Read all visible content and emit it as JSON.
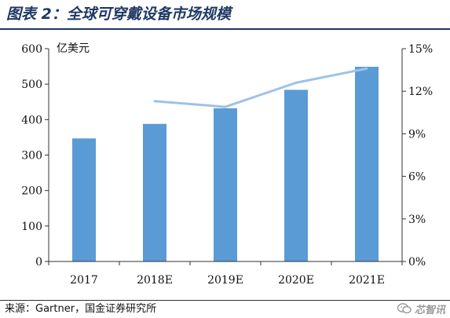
{
  "title": "图表 2：全球可穿戴设备市场规模",
  "source": "来源：Gartner，国金证券研究所",
  "watermark": "芯智讯",
  "colors": {
    "bar": "#5b9bd5",
    "line": "#9dc3e6",
    "title": "#1f3864"
  },
  "chart_data": {
    "type": "bar",
    "categories": [
      "2017",
      "2018E",
      "2019E",
      "2020E",
      "2021E"
    ],
    "ylabel": "亿美元",
    "ylim": [
      0,
      600
    ],
    "yticks": [
      "0",
      "100",
      "200",
      "300",
      "400",
      "500",
      "600"
    ],
    "y2lim": [
      0,
      15
    ],
    "y2ticks": [
      "0%",
      "3%",
      "6%",
      "9%",
      "12%",
      "15%"
    ],
    "grid": false,
    "series": [
      {
        "type": "bar",
        "axis": "left",
        "values": [
          347,
          388,
          432,
          484,
          549
        ]
      },
      {
        "type": "line",
        "axis": "right",
        "values": [
          null,
          11.3,
          10.9,
          12.6,
          13.6
        ]
      }
    ]
  }
}
